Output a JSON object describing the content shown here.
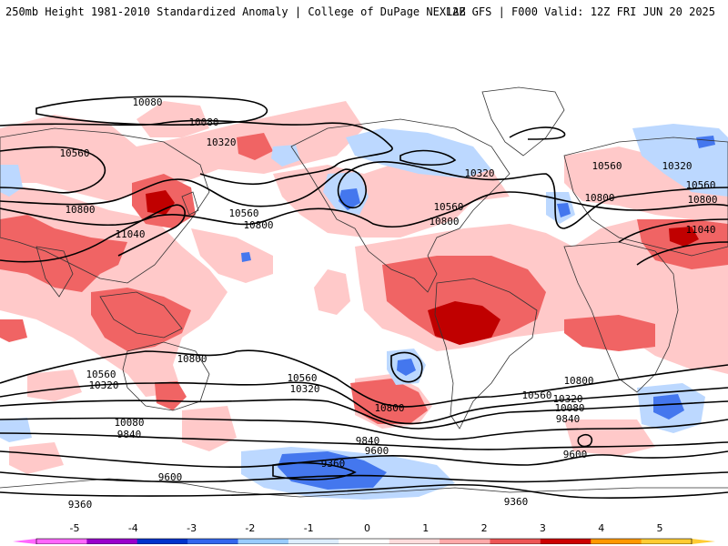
{
  "header": {
    "left": "250mb Height 1981-2010 Standardized Anomaly | College of DuPage NEXLAB",
    "right": "12Z GFS | F000 Valid: 12Z FRI JUN 20 2025"
  },
  "contour_labels": [
    "10080",
    "10080",
    "10320",
    "10560",
    "10800",
    "11040",
    "10560",
    "10800",
    "10320",
    "10560",
    "10800",
    "10560",
    "10800",
    "10320",
    "10560",
    "10800",
    "11040",
    "10800",
    "10560",
    "10320",
    "10560",
    "10320",
    "10800",
    "10080",
    "9840",
    "10560",
    "10320",
    "10080",
    "9840",
    "10800",
    "9840",
    "9600",
    "9360",
    "9600",
    "9360",
    "9600",
    "9360"
  ],
  "colorbar": {
    "ticks": [
      "-5",
      "-4",
      "-3",
      "-2",
      "-1",
      "0",
      "1",
      "2",
      "3",
      "4",
      "5"
    ],
    "colors": [
      "#ff66ff",
      "#9900cc",
      "#0033cc",
      "#3366ee",
      "#99ccff",
      "#ddeeff",
      "#ffffff",
      "#ffdddd",
      "#ffaaaa",
      "#ee5555",
      "#cc0000",
      "#ff9900",
      "#ffcc33"
    ]
  }
}
